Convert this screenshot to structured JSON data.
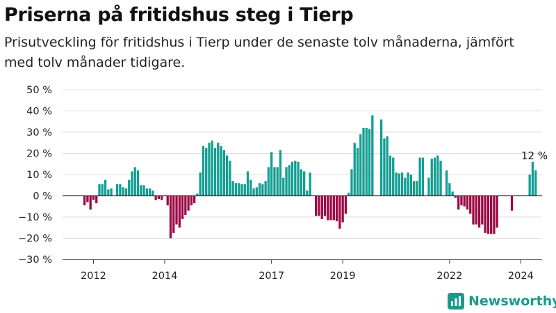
{
  "header": {
    "title": "Priserna på fritidshus steg i Tierp",
    "subtitle": "Prisutveckling för fritidshus i Tierp under de senaste tolv månaderna, jämfört med tolv månader tidigare."
  },
  "brand": {
    "name": "Newsworthy",
    "icon": "bar-chart-logo-icon",
    "color": "#1c9a8c"
  },
  "chart_data": {
    "type": "bar",
    "x_start": "2011-10",
    "x_step": "month",
    "x_ticks": [
      "2012",
      "2014",
      "2017",
      "2019",
      "2022",
      "2024"
    ],
    "y_ticks": [
      "50 %",
      "40 %",
      "30 %",
      "20 %",
      "10 %",
      "0 %",
      "−10 %",
      "−20 %",
      "−30 %"
    ],
    "ylim": [
      -30,
      50
    ],
    "grid": true,
    "colors": {
      "positive": "#139e92",
      "negative": "#9c0a46"
    },
    "annotation": {
      "text": "12 %",
      "value": 12
    },
    "values": [
      -4.5,
      -3,
      -6.5,
      -2,
      -3.5,
      5.5,
      5.5,
      7.5,
      3,
      3.5,
      null,
      5.5,
      5.5,
      4,
      3.5,
      7.5,
      11.5,
      13.5,
      12,
      5,
      5,
      3.5,
      3.5,
      2.5,
      -2,
      -1.5,
      -2,
      null,
      -4.5,
      -20,
      -17.5,
      -13.5,
      -15,
      -11,
      -9,
      -7,
      -4.5,
      -3.5,
      1,
      11,
      23.5,
      22.5,
      25,
      26,
      22.5,
      25,
      23.5,
      21.5,
      19,
      16.5,
      7,
      6,
      6,
      5.5,
      5.5,
      11.5,
      7.5,
      3.5,
      4,
      6,
      5.5,
      7,
      13.5,
      20.5,
      13.5,
      13.5,
      21.5,
      8.5,
      13.5,
      14.5,
      16,
      16.5,
      16,
      12.5,
      11.5,
      2.5,
      11,
      null,
      -9.5,
      -9.5,
      -11,
      -9.5,
      -11.5,
      -11.5,
      -11.5,
      -12,
      -15.5,
      -12.5,
      -8.5,
      1.5,
      12.5,
      25,
      22.5,
      29,
      32,
      32,
      31.5,
      38,
      null,
      null,
      36,
      27,
      28,
      19,
      18,
      11,
      10.5,
      11,
      8.5,
      11,
      10,
      7,
      7,
      18,
      18,
      null,
      8.5,
      17.5,
      18,
      19,
      16.5,
      null,
      12,
      6,
      2,
      -1,
      -6.5,
      -4.5,
      -5,
      -6.5,
      -8.5,
      -13.5,
      -13.5,
      -15,
      -13.5,
      -17.5,
      -18,
      -18,
      -18,
      -15,
      null,
      null,
      null,
      null,
      -7,
      null,
      null,
      null,
      null,
      null,
      10,
      16,
      12
    ]
  }
}
